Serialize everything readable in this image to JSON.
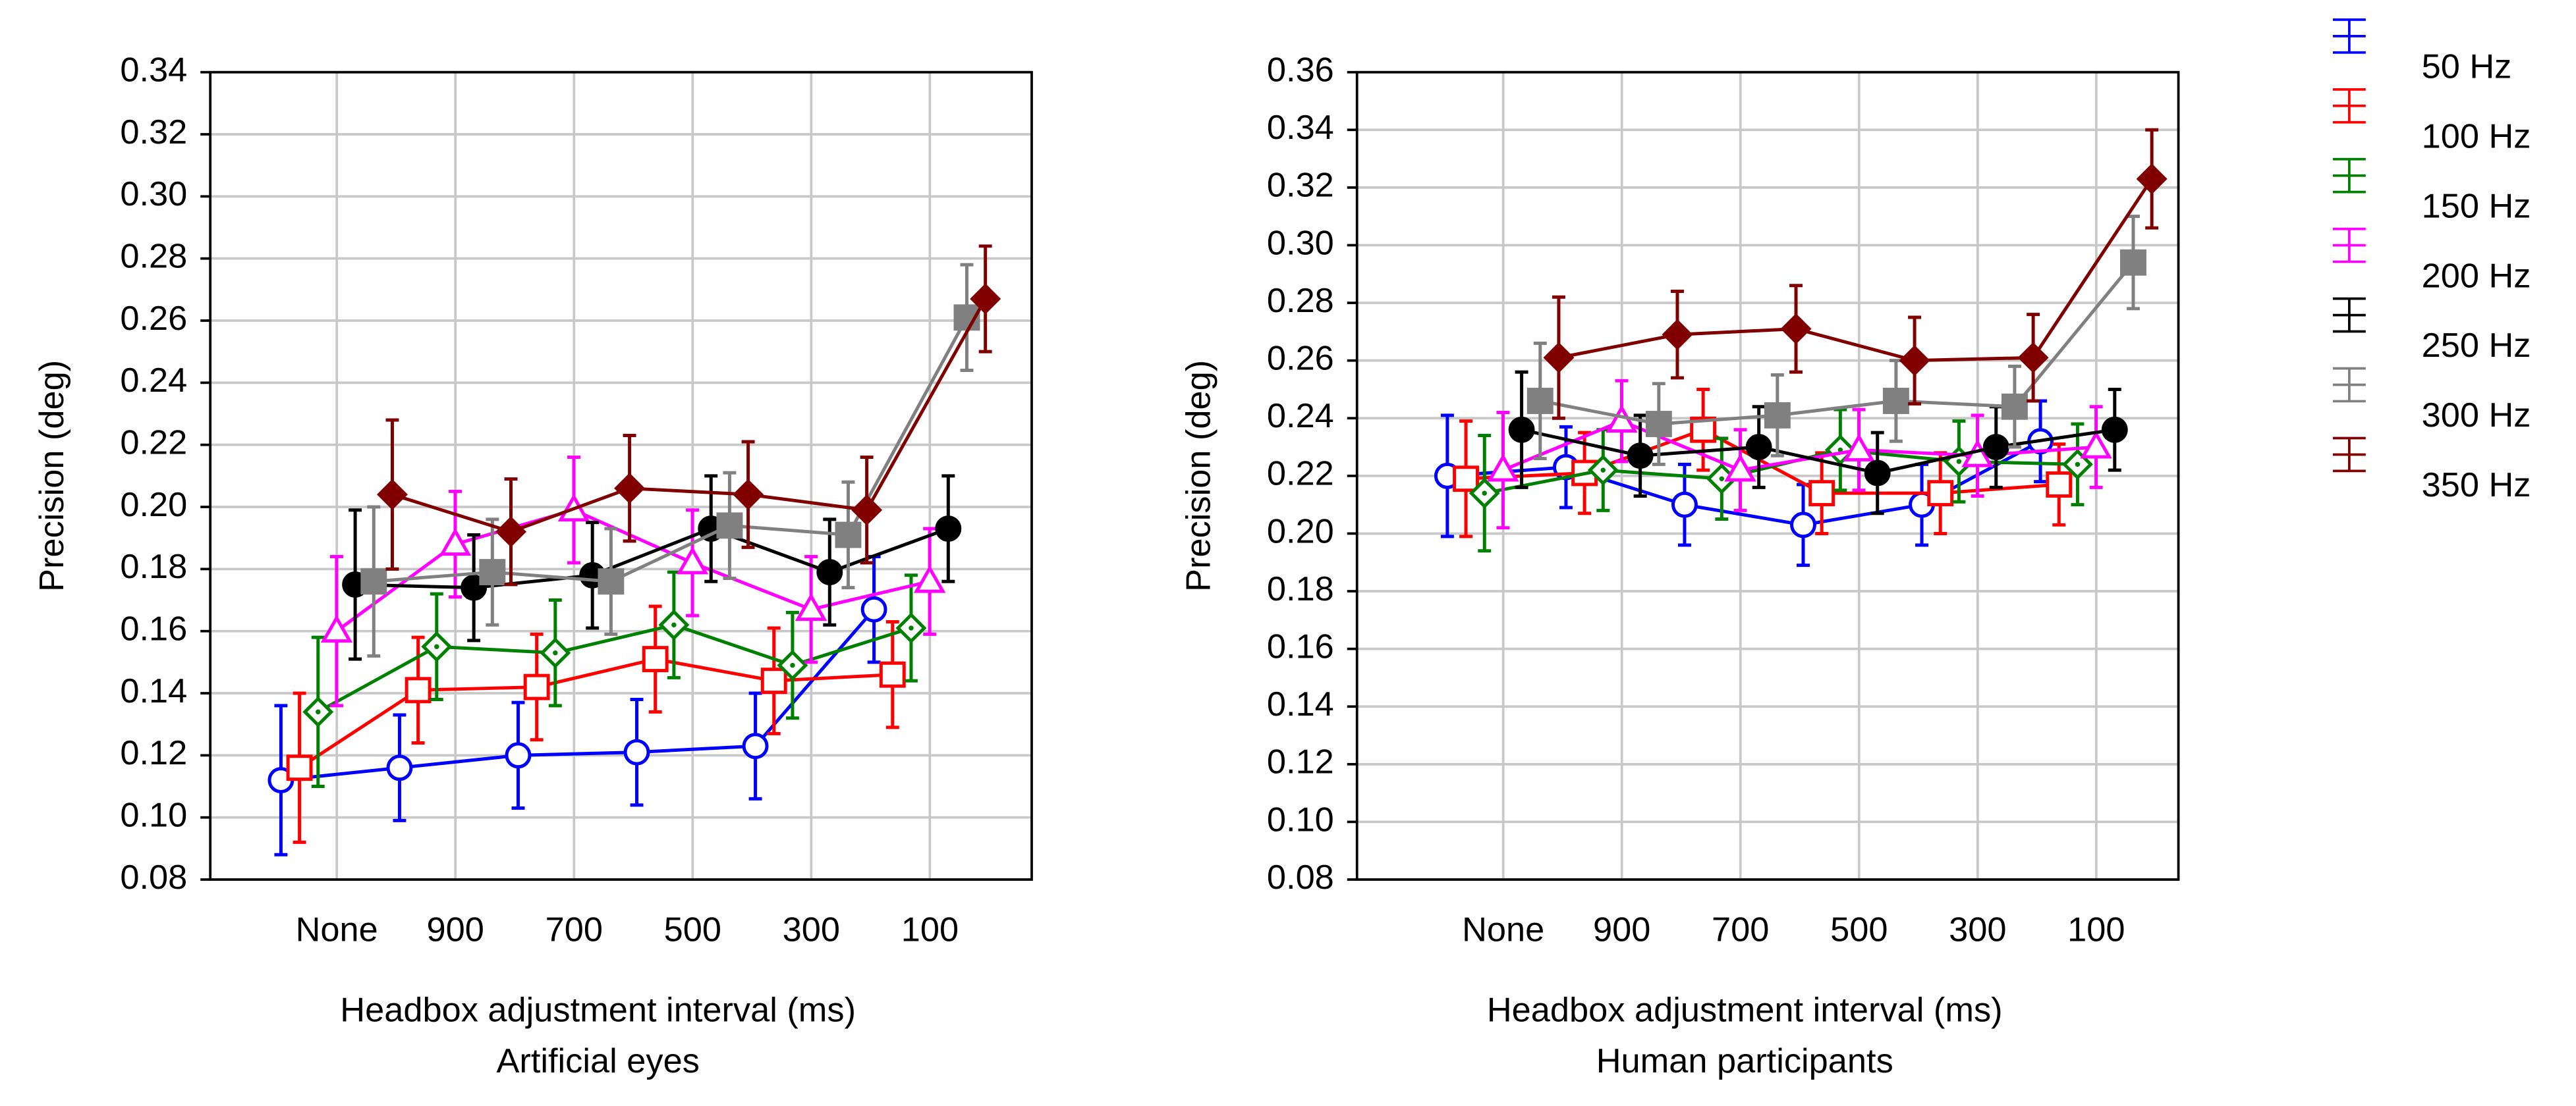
{
  "chart_data": [
    {
      "type": "line",
      "xlabel": "Headbox adjustment interval (ms)",
      "subtitle": "Artificial eyes",
      "ylabel": "Precision (deg)",
      "categories": [
        "None",
        "900",
        "700",
        "500",
        "300",
        "100"
      ],
      "ylim": [
        0.08,
        0.34
      ],
      "yticks": [
        0.08,
        {
          "value": 0.1,
          "label": "0.10"
        },
        0.12,
        0.14,
        0.16,
        0.18,
        {
          "value": 0.2,
          "label": "0.20"
        },
        0.22,
        0.24,
        0.26,
        0.28,
        {
          "value": 0.3,
          "label": "0.30"
        },
        0.32,
        0.34
      ],
      "grid": true,
      "series": [
        {
          "name": "50 Hz",
          "color": "#0000ff",
          "marker": "circle",
          "values": [
            0.112,
            0.116,
            0.12,
            0.121,
            0.123,
            0.167
          ],
          "errors": [
            0.024,
            0.017,
            0.017,
            0.017,
            0.017,
            0.017
          ]
        },
        {
          "name": "100 Hz",
          "color": "#ff0000",
          "marker": "square",
          "values": [
            0.116,
            0.141,
            0.142,
            0.151,
            0.144,
            0.146
          ],
          "errors": [
            0.024,
            0.017,
            0.017,
            0.017,
            0.017,
            0.017
          ]
        },
        {
          "name": "150 Hz",
          "color": "#008000",
          "marker": "diamond",
          "values": [
            0.134,
            0.155,
            0.153,
            0.162,
            0.149,
            0.161
          ],
          "errors": [
            0.024,
            0.017,
            0.017,
            0.017,
            0.017,
            0.017
          ]
        },
        {
          "name": "200 Hz",
          "color": "#ff00ff",
          "marker": "triangle",
          "values": [
            0.16,
            0.188,
            0.199,
            0.182,
            0.167,
            0.176
          ],
          "errors": [
            0.024,
            0.017,
            0.017,
            0.017,
            0.017,
            0.017
          ]
        },
        {
          "name": "250 Hz",
          "color": "#000000",
          "marker": "filled-circle",
          "values": [
            0.175,
            0.174,
            0.178,
            0.193,
            0.179,
            0.193
          ],
          "errors": [
            0.024,
            0.017,
            0.017,
            0.017,
            0.017,
            0.017
          ]
        },
        {
          "name": "300 Hz",
          "color": "#808080",
          "marker": "filled-square",
          "values": [
            0.176,
            0.179,
            0.176,
            0.194,
            0.191,
            0.261
          ],
          "errors": [
            0.024,
            0.017,
            0.017,
            0.017,
            0.017,
            0.017
          ]
        },
        {
          "name": "350 Hz",
          "color": "#800000",
          "marker": "filled-diamond",
          "values": [
            0.204,
            0.192,
            0.206,
            0.204,
            0.199,
            0.267
          ],
          "errors": [
            0.024,
            0.017,
            0.017,
            0.017,
            0.017,
            0.017
          ]
        }
      ]
    },
    {
      "type": "line",
      "xlabel": "Headbox adjustment interval (ms)",
      "subtitle": "Human participants",
      "ylabel": "Precision (deg)",
      "categories": [
        "None",
        "900",
        "700",
        "500",
        "300",
        "100"
      ],
      "ylim": [
        0.08,
        0.36
      ],
      "yticks": [
        0.08,
        {
          "value": 0.1,
          "label": "0.10"
        },
        0.12,
        0.14,
        0.16,
        0.18,
        {
          "value": 0.2,
          "label": "0.20"
        },
        0.22,
        0.24,
        0.26,
        0.28,
        {
          "value": 0.3,
          "label": "0.30"
        },
        0.32,
        0.34,
        0.36
      ],
      "grid": true,
      "series": [
        {
          "color": "#0000ff",
          "marker": "circle",
          "values": [
            0.22,
            0.223,
            0.21,
            0.203,
            0.21,
            0.232
          ],
          "errors": [
            0.021,
            0.014,
            0.014,
            0.014,
            0.014,
            0.014
          ]
        },
        {
          "color": "#ff0000",
          "marker": "square",
          "values": [
            0.219,
            0.221,
            0.236,
            0.214,
            0.214,
            0.217
          ],
          "errors": [
            0.02,
            0.014,
            0.014,
            0.014,
            0.014,
            0.014
          ]
        },
        {
          "color": "#008000",
          "marker": "diamond",
          "values": [
            0.214,
            0.222,
            0.219,
            0.229,
            0.225,
            0.224
          ],
          "errors": [
            0.02,
            0.014,
            0.014,
            0.014,
            0.014,
            0.014
          ]
        },
        {
          "color": "#ff00ff",
          "marker": "triangle",
          "values": [
            0.222,
            0.239,
            0.222,
            0.229,
            0.227,
            0.23
          ],
          "errors": [
            0.02,
            0.014,
            0.014,
            0.014,
            0.014,
            0.014
          ]
        },
        {
          "color": "#000000",
          "marker": "filled-circle",
          "values": [
            0.236,
            0.227,
            0.23,
            0.221,
            0.23,
            0.236
          ],
          "errors": [
            0.02,
            0.014,
            0.014,
            0.014,
            0.014,
            0.014
          ]
        },
        {
          "color": "#808080",
          "marker": "filled-square",
          "values": [
            0.246,
            0.238,
            0.241,
            0.246,
            0.244,
            0.294
          ],
          "errors": [
            0.02,
            0.014,
            0.014,
            0.014,
            0.014,
            0.016
          ]
        },
        {
          "color": "#800000",
          "marker": "filled-diamond",
          "values": [
            0.261,
            0.269,
            0.271,
            0.26,
            0.261,
            0.323
          ],
          "errors": [
            0.021,
            0.015,
            0.015,
            0.015,
            0.015,
            0.017
          ]
        }
      ]
    }
  ]
}
